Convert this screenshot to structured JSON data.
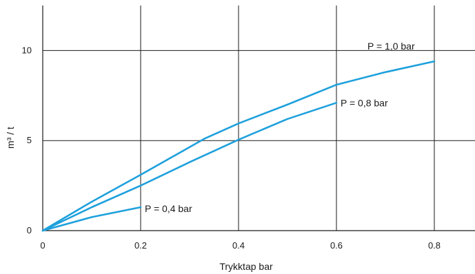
{
  "chart_data": {
    "type": "line",
    "title": "",
    "xlabel": "Trykktap bar",
    "ylabel": "m³ / t",
    "xlim": [
      0,
      0.8
    ],
    "ylim": [
      0,
      12.5
    ],
    "x_ticks": [
      0,
      0.2,
      0.4,
      0.6,
      0.8
    ],
    "x_tick_labels": [
      "0",
      "0.2",
      "0.4",
      "0.6",
      "0.8"
    ],
    "y_ticks": [
      0,
      5,
      10
    ],
    "y_tick_labels": [
      "0",
      "5",
      "10"
    ],
    "grid": true,
    "line_color": "#1ea0dc",
    "series": [
      {
        "name": "P = 1,0  bar",
        "x": [
          0,
          0.1,
          0.2,
          0.33,
          0.4,
          0.5,
          0.6,
          0.7,
          0.8
        ],
        "y": [
          0,
          1.6,
          3.1,
          5.1,
          5.95,
          7.0,
          8.1,
          8.8,
          9.4
        ]
      },
      {
        "name": "P = 0,8  bar",
        "x": [
          0,
          0.1,
          0.2,
          0.3,
          0.4,
          0.5,
          0.6
        ],
        "y": [
          0,
          1.3,
          2.5,
          3.8,
          5.05,
          6.2,
          7.1
        ]
      },
      {
        "name": "P = 0,4  bar",
        "x": [
          0,
          0.1,
          0.2
        ],
        "y": [
          0,
          0.75,
          1.3
        ]
      }
    ]
  }
}
